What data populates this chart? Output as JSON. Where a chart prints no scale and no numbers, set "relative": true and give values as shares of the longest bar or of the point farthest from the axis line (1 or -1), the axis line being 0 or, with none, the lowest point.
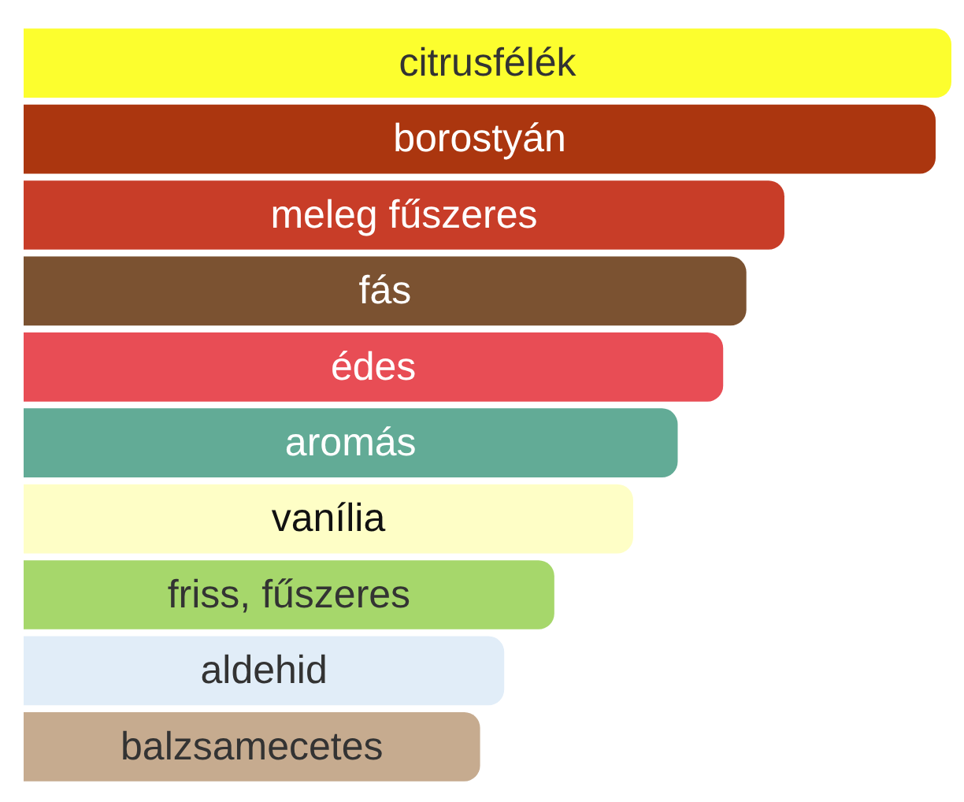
{
  "chart_data": {
    "type": "bar",
    "orientation": "horizontal",
    "relative": true,
    "categories": [
      "citrusfélék",
      "borostyán",
      "meleg fűszeres",
      "fás",
      "édes",
      "aromás",
      "vanília",
      "friss, fűszeres",
      "aldehid",
      "balzsamecetes"
    ],
    "values": [
      1,
      0.983,
      0.82,
      0.779,
      0.754,
      0.705,
      0.657,
      0.572,
      0.518,
      0.492
    ],
    "colors": [
      "#fcfe2e",
      "#ab360f",
      "#c83d28",
      "#7b5231",
      "#e84d55",
      "#62ab96",
      "#fefec6",
      "#a6d76b",
      "#e1edf8",
      "#c6ab8f"
    ],
    "legend": false
  }
}
